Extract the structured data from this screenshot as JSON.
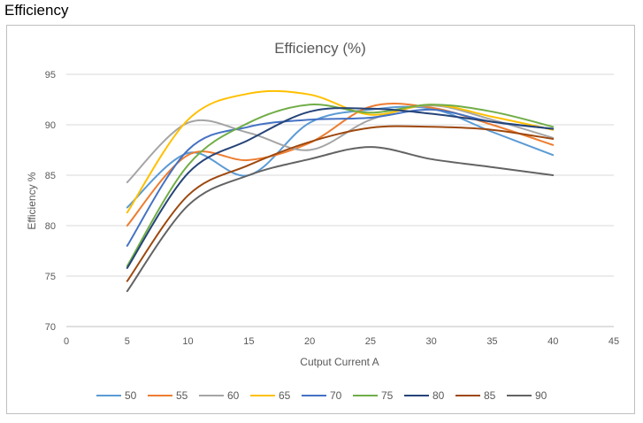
{
  "page": {
    "heading": "Efficiency"
  },
  "chart_data": {
    "type": "line",
    "title": "Efficiency (%)",
    "xlabel": "Cutput Current A",
    "ylabel": "Efficiency  %",
    "xlim": [
      0,
      45
    ],
    "ylim": [
      70,
      95
    ],
    "xticks": [
      0,
      5,
      10,
      15,
      20,
      25,
      30,
      35,
      40,
      45
    ],
    "yticks": [
      70,
      75,
      80,
      85,
      90,
      95
    ],
    "grid": "horizontal",
    "legend": "bottom",
    "x": [
      5,
      10,
      15,
      20,
      25,
      30,
      35,
      40
    ],
    "series": [
      {
        "name": "50",
        "color": "#5b9bd5",
        "values": [
          81.8,
          87.2,
          85.0,
          90.2,
          91.5,
          91.6,
          89.3,
          87.0
        ]
      },
      {
        "name": "55",
        "color": "#ed7d31",
        "values": [
          80.0,
          87.0,
          86.5,
          88.2,
          91.8,
          91.7,
          90.0,
          88.0
        ]
      },
      {
        "name": "60",
        "color": "#a5a5a5",
        "values": [
          84.3,
          90.2,
          89.2,
          87.5,
          90.5,
          91.9,
          90.5,
          88.7
        ]
      },
      {
        "name": "65",
        "color": "#ffc000",
        "values": [
          81.3,
          90.5,
          93.1,
          93.0,
          91.0,
          92.0,
          90.8,
          89.5
        ]
      },
      {
        "name": "70",
        "color": "#4472c4",
        "values": [
          78.0,
          87.5,
          89.8,
          90.5,
          90.7,
          91.5,
          90.3,
          89.6
        ]
      },
      {
        "name": "75",
        "color": "#70ad47",
        "values": [
          76.0,
          86.0,
          90.2,
          92.0,
          91.2,
          92.0,
          91.3,
          89.8
        ]
      },
      {
        "name": "80",
        "color": "#264478",
        "values": [
          75.8,
          85.2,
          88.5,
          91.3,
          91.6,
          91.1,
          90.3,
          89.6
        ]
      },
      {
        "name": "85",
        "color": "#9e480e",
        "values": [
          74.5,
          83.0,
          86.0,
          88.3,
          89.7,
          89.8,
          89.5,
          88.6
        ]
      },
      {
        "name": "90",
        "color": "#636363",
        "values": [
          73.5,
          82.0,
          85.0,
          86.6,
          87.8,
          86.6,
          85.8,
          85.0
        ]
      }
    ]
  }
}
